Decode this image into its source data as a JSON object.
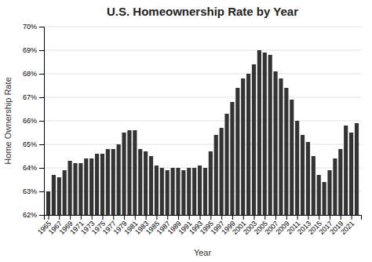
{
  "chart_data": {
    "type": "bar",
    "title": "U.S. Homeownership Rate by Year",
    "xlabel": "Year",
    "ylabel": "Home Ownership Rate",
    "x": [
      1965,
      1966,
      1967,
      1968,
      1969,
      1970,
      1971,
      1972,
      1973,
      1974,
      1975,
      1976,
      1977,
      1978,
      1979,
      1980,
      1981,
      1982,
      1983,
      1984,
      1985,
      1986,
      1987,
      1988,
      1989,
      1990,
      1991,
      1992,
      1993,
      1994,
      1995,
      1996,
      1997,
      1998,
      1999,
      2000,
      2001,
      2002,
      2003,
      2004,
      2005,
      2006,
      2007,
      2008,
      2009,
      2010,
      2011,
      2012,
      2013,
      2014,
      2015,
      2016,
      2017,
      2018,
      2019,
      2020,
      2021,
      2022
    ],
    "values": [
      63.0,
      63.7,
      63.6,
      63.9,
      64.3,
      64.2,
      64.2,
      64.4,
      64.4,
      64.6,
      64.6,
      64.8,
      64.8,
      65.0,
      65.5,
      65.6,
      65.6,
      64.8,
      64.7,
      64.5,
      64.1,
      64.0,
      63.9,
      64.0,
      64.0,
      63.9,
      64.0,
      64.0,
      64.1,
      64.0,
      64.7,
      65.4,
      65.7,
      66.3,
      66.8,
      67.4,
      67.8,
      68.0,
      68.4,
      69.0,
      68.9,
      68.8,
      68.1,
      67.8,
      67.4,
      66.9,
      66.0,
      65.4,
      65.1,
      64.5,
      63.7,
      63.4,
      63.9,
      64.4,
      64.8,
      65.8,
      65.5,
      65.9
    ],
    "color": "#333333",
    "xlim": [
      1964.2,
      2022.8
    ],
    "xticks": [
      1965,
      1967,
      1969,
      1971,
      1973,
      1975,
      1977,
      1979,
      1981,
      1983,
      1985,
      1987,
      1989,
      1991,
      1993,
      1995,
      1997,
      1999,
      2001,
      2003,
      2005,
      2007,
      2009,
      2011,
      2013,
      2015,
      2017,
      2019,
      2021
    ],
    "ylim": [
      62,
      70
    ],
    "yticks": [
      {
        "value": 62,
        "label": "62%"
      },
      {
        "value": 63,
        "label": "63%"
      },
      {
        "value": 64,
        "label": "64%"
      },
      {
        "value": 65,
        "label": "65%"
      },
      {
        "value": 66,
        "label": "66%"
      },
      {
        "value": 67,
        "label": "67%"
      },
      {
        "value": 68,
        "label": "68%"
      },
      {
        "value": 69,
        "label": "69%"
      },
      {
        "value": 70,
        "label": "70%"
      }
    ],
    "grid": true
  }
}
